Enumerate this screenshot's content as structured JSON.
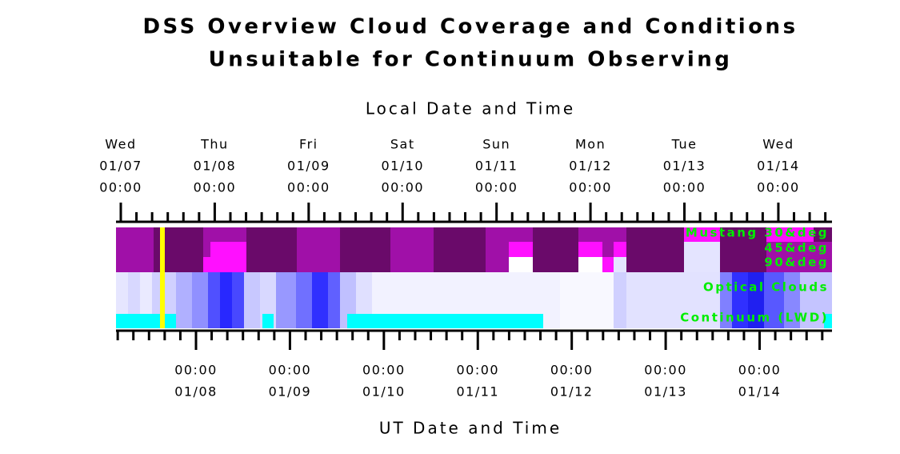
{
  "title_lines": [
    "DSS Overview Cloud Coverage and Conditions",
    "Unsuitable for Continuum Observing"
  ],
  "top_axis": {
    "label": "Local Date and Time",
    "ticks": [
      {
        "day": "Wed",
        "date": "01/07",
        "time": "00:00"
      },
      {
        "day": "Thu",
        "date": "01/08",
        "time": "00:00"
      },
      {
        "day": "Fri",
        "date": "01/09",
        "time": "00:00"
      },
      {
        "day": "Sat",
        "date": "01/10",
        "time": "00:00"
      },
      {
        "day": "Sun",
        "date": "01/11",
        "time": "00:00"
      },
      {
        "day": "Mon",
        "date": "01/12",
        "time": "00:00"
      },
      {
        "day": "Tue",
        "date": "01/13",
        "time": "00:00"
      },
      {
        "day": "Wed",
        "date": "01/14",
        "time": "00:00"
      }
    ]
  },
  "bottom_axis": {
    "label": "UT Date and Time",
    "ticks": [
      {
        "time": "00:00",
        "date": "01/08"
      },
      {
        "time": "00:00",
        "date": "01/09"
      },
      {
        "time": "00:00",
        "date": "01/10"
      },
      {
        "time": "00:00",
        "date": "01/11"
      },
      {
        "time": "00:00",
        "date": "01/12"
      },
      {
        "time": "00:00",
        "date": "01/13"
      },
      {
        "time": "00:00",
        "date": "01/14"
      }
    ]
  },
  "rows": [
    "Mustang 30&deg",
    "45&deg",
    "90&deg",
    "Optical Clouds",
    "Continuum (LWD)"
  ]
}
